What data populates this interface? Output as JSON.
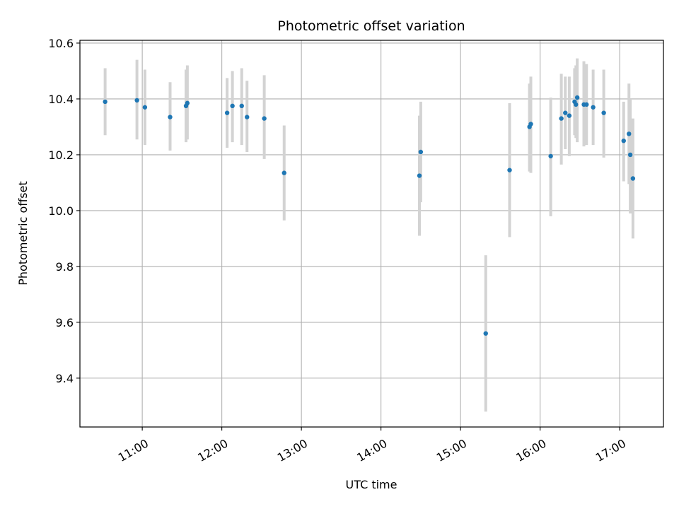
{
  "chart_data": {
    "type": "scatter",
    "title": "Photometric offset variation",
    "xlabel": "UTC time",
    "ylabel": "Photometric offset",
    "grid": true,
    "x_is_time": true,
    "xlim": [
      "10:13",
      "17:33"
    ],
    "ylim": [
      9.225,
      10.61
    ],
    "x_ticks": [
      "11:00",
      "12:00",
      "13:00",
      "14:00",
      "15:00",
      "16:00",
      "17:00"
    ],
    "y_ticks": [
      "9.4",
      "9.6",
      "9.8",
      "10.0",
      "10.2",
      "10.4",
      "10.6"
    ],
    "colors": {
      "point": "#1f77b4",
      "errorbar": "#d3d3d3",
      "grid": "#b0b0b0"
    },
    "series": [
      {
        "points": [
          {
            "x": "10:32",
            "y": 10.39,
            "ylo": 10.27,
            "yhi": 10.51
          },
          {
            "x": "10:56",
            "y": 10.395,
            "ylo": 10.255,
            "yhi": 10.54
          },
          {
            "x": "11:02",
            "y": 10.37,
            "ylo": 10.235,
            "yhi": 10.505
          },
          {
            "x": "11:21",
            "y": 10.335,
            "ylo": 10.215,
            "yhi": 10.46
          },
          {
            "x": "11:33",
            "y": 10.375,
            "ylo": 10.245,
            "yhi": 10.505
          },
          {
            "x": "11:34",
            "y": 10.385,
            "ylo": 10.255,
            "yhi": 10.52
          },
          {
            "x": "12:04",
            "y": 10.35,
            "ylo": 10.225,
            "yhi": 10.475
          },
          {
            "x": "12:08",
            "y": 10.375,
            "ylo": 10.245,
            "yhi": 10.5
          },
          {
            "x": "12:15",
            "y": 10.375,
            "ylo": 10.235,
            "yhi": 10.51
          },
          {
            "x": "12:19",
            "y": 10.335,
            "ylo": 10.21,
            "yhi": 10.465
          },
          {
            "x": "12:32",
            "y": 10.33,
            "ylo": 10.185,
            "yhi": 10.485
          },
          {
            "x": "12:47",
            "y": 10.135,
            "ylo": 9.965,
            "yhi": 10.305
          },
          {
            "x": "14:29",
            "y": 10.125,
            "ylo": 9.91,
            "yhi": 10.34
          },
          {
            "x": "14:30",
            "y": 10.21,
            "ylo": 10.03,
            "yhi": 10.39
          },
          {
            "x": "15:19",
            "y": 9.56,
            "ylo": 9.28,
            "yhi": 9.84
          },
          {
            "x": "15:37",
            "y": 10.145,
            "ylo": 9.905,
            "yhi": 10.385
          },
          {
            "x": "15:52",
            "y": 10.3,
            "ylo": 10.14,
            "yhi": 10.455
          },
          {
            "x": "15:53",
            "y": 10.31,
            "ylo": 10.135,
            "yhi": 10.48
          },
          {
            "x": "16:08",
            "y": 10.195,
            "ylo": 9.98,
            "yhi": 10.405
          },
          {
            "x": "16:16",
            "y": 10.33,
            "ylo": 10.165,
            "yhi": 10.49
          },
          {
            "x": "16:19",
            "y": 10.35,
            "ylo": 10.22,
            "yhi": 10.48
          },
          {
            "x": "16:22",
            "y": 10.34,
            "ylo": 10.195,
            "yhi": 10.48
          },
          {
            "x": "16:26",
            "y": 10.39,
            "ylo": 10.27,
            "yhi": 10.51
          },
          {
            "x": "16:27",
            "y": 10.38,
            "ylo": 10.26,
            "yhi": 10.52
          },
          {
            "x": "16:28",
            "y": 10.405,
            "ylo": 10.245,
            "yhi": 10.545
          },
          {
            "x": "16:33",
            "y": 10.38,
            "ylo": 10.23,
            "yhi": 10.535
          },
          {
            "x": "16:35",
            "y": 10.38,
            "ylo": 10.235,
            "yhi": 10.525
          },
          {
            "x": "16:40",
            "y": 10.37,
            "ylo": 10.235,
            "yhi": 10.505
          },
          {
            "x": "16:48",
            "y": 10.35,
            "ylo": 10.19,
            "yhi": 10.505
          },
          {
            "x": "17:03",
            "y": 10.25,
            "ylo": 10.105,
            "yhi": 10.39
          },
          {
            "x": "17:07",
            "y": 10.275,
            "ylo": 10.095,
            "yhi": 10.455
          },
          {
            "x": "17:08",
            "y": 10.2,
            "ylo": 9.99,
            "yhi": 10.4
          },
          {
            "x": "17:10",
            "y": 10.115,
            "ylo": 9.9,
            "yhi": 10.33
          }
        ]
      }
    ]
  }
}
